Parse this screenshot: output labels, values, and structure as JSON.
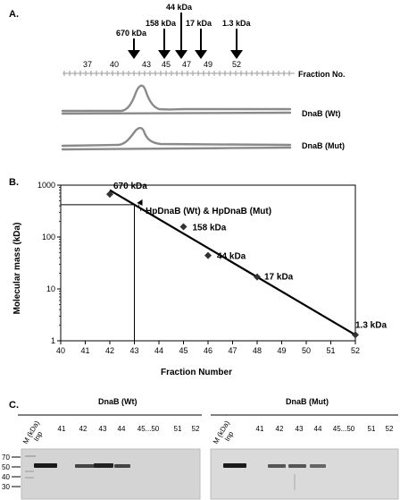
{
  "panel_a": {
    "label": "A.",
    "markers": [
      {
        "label": "670 kDa",
        "fraction": 42
      },
      {
        "label": "158 kDa",
        "fraction": 45
      },
      {
        "label": "44 kDa",
        "fraction": 46
      },
      {
        "label": "17 kDa",
        "fraction": 48
      },
      {
        "label": "1.3 kDa",
        "fraction": 52
      }
    ],
    "fraction_ticks": [
      "37",
      "40",
      "43",
      "45",
      "47",
      "49",
      "52"
    ],
    "fraction_axis_label": "Fraction No.",
    "traces": [
      {
        "name": "DnaB (Wt)"
      },
      {
        "name": "DnaB (Mut)"
      }
    ]
  },
  "panel_b": {
    "label": "B.",
    "annotation": "HpDnaB (Wt) & HpDnaB (Mut)"
  },
  "chart_data": {
    "type": "scatter",
    "xlabel": "Fraction Number",
    "ylabel": "Molecular mass (kDa)",
    "xlim": [
      40,
      52
    ],
    "ylim": [
      1,
      1000
    ],
    "y_scale": "log",
    "x_ticks": [
      "40",
      "41",
      "42",
      "43",
      "44",
      "45",
      "46",
      "47",
      "48",
      "49",
      "50",
      "51",
      "52"
    ],
    "y_ticks": [
      "1",
      "10",
      "100",
      "1000"
    ],
    "points": [
      {
        "x": 42,
        "y": 670,
        "label": "670 kDa"
      },
      {
        "x": 45,
        "y": 158,
        "label": "158 kDa"
      },
      {
        "x": 46,
        "y": 44,
        "label": "44 kDa"
      },
      {
        "x": 48,
        "y": 17,
        "label": "17 kDa"
      },
      {
        "x": 52,
        "y": 1.3,
        "label": "1.3 kDa"
      }
    ],
    "fit_line": [
      {
        "x": 42,
        "y": 800
      },
      {
        "x": 52,
        "y": 1.3
      }
    ],
    "reference": {
      "x": 43,
      "y": 420
    }
  },
  "panel_c": {
    "label": "C.",
    "gels": [
      {
        "title": "DnaB (Wt)",
        "lanes": [
          "M (kDa)",
          "Inp",
          "41",
          "42",
          "43",
          "44",
          "45...50",
          "51",
          "52"
        ]
      },
      {
        "title": "DnaB (Mut)",
        "lanes": [
          "M (kDa)",
          "Inp",
          "41",
          "42",
          "43",
          "44",
          "45...50",
          "51",
          "52"
        ]
      }
    ],
    "mw_ladder": [
      "70",
      "50",
      "40",
      "30"
    ]
  }
}
